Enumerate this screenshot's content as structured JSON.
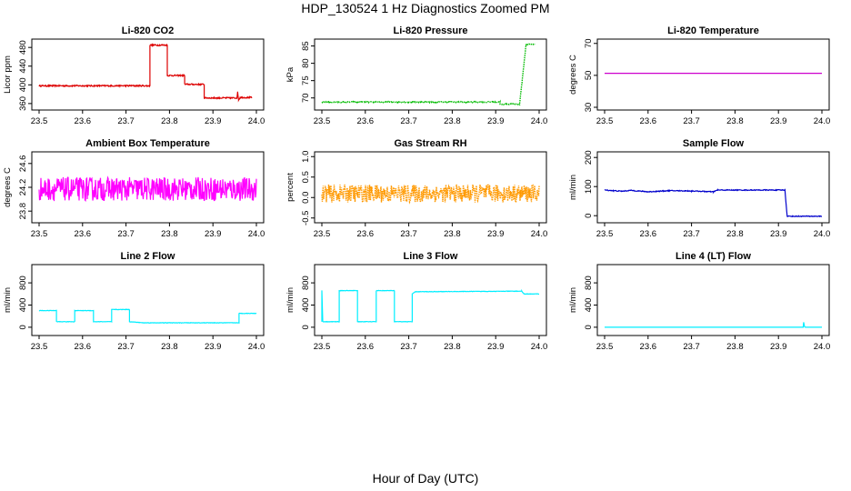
{
  "title": "HDP_130524  1 Hz Diagnostics Zoomed PM",
  "xlabel": "Hour of Day (UTC)",
  "chart_data": [
    {
      "type": "line",
      "title": "Li-820 CO2",
      "ylabel": "Licor ppm",
      "color": "#dd0000",
      "xlim": [
        23.5,
        24.0
      ],
      "xticks": [
        "23.5",
        "23.6",
        "23.7",
        "23.8",
        "23.9",
        "24.0"
      ],
      "ylim": [
        352,
        492
      ],
      "yticks": [
        "360",
        "400",
        "440",
        "480"
      ],
      "noise": 1.5,
      "series": [
        {
          "steps": [
            [
              23.5,
              398
            ],
            [
              23.755,
              398
            ],
            [
              23.755,
              485
            ],
            [
              23.795,
              485
            ],
            [
              23.795,
              420
            ],
            [
              23.835,
              420
            ],
            [
              23.835,
              401
            ],
            [
              23.88,
              401
            ],
            [
              23.88,
              372
            ],
            [
              23.955,
              372
            ],
            [
              23.957,
              384
            ],
            [
              23.959,
              368
            ],
            [
              23.963,
              373
            ],
            [
              23.99,
              373
            ]
          ]
        }
      ]
    },
    {
      "type": "line",
      "title": "Li-820 Pressure",
      "ylabel": "kPa",
      "color": "#00bb00",
      "style": "dotted",
      "xlim": [
        23.5,
        24.0
      ],
      "xticks": [
        "23.5",
        "23.6",
        "23.7",
        "23.8",
        "23.9",
        "24.0"
      ],
      "ylim": [
        67.3,
        86.2
      ],
      "yticks": [
        "70",
        "75",
        "80",
        "85"
      ],
      "noise": 0.15,
      "series": [
        {
          "steps": [
            [
              23.5,
              68.8
            ],
            [
              23.91,
              68.8
            ],
            [
              23.91,
              68.2
            ],
            [
              23.955,
              68.2
            ],
            [
              23.97,
              85.5
            ],
            [
              23.99,
              85.5
            ]
          ]
        }
      ]
    },
    {
      "type": "line",
      "title": "Li-820 Temperature",
      "ylabel": "degrees C",
      "color": "#cc00cc",
      "xlim": [
        23.5,
        24.0
      ],
      "xticks": [
        "23.5",
        "23.6",
        "23.7",
        "23.8",
        "23.9",
        "24.0"
      ],
      "ylim": [
        30,
        71
      ],
      "yticks": [
        "30",
        "50",
        "70"
      ],
      "noise": 0,
      "series": [
        {
          "steps": [
            [
              23.5,
              51.3
            ],
            [
              24.0,
              51.3
            ]
          ]
        }
      ]
    },
    {
      "type": "line",
      "title": "Ambient Box Temperature",
      "ylabel": "degrees C",
      "color": "#ff00ff",
      "xlim": [
        23.5,
        24.0
      ],
      "xticks": [
        "23.5",
        "23.6",
        "23.7",
        "23.8",
        "23.9",
        "24.0"
      ],
      "ylim": [
        23.65,
        24.75
      ],
      "yticks": [
        "23.8",
        "24.2",
        "24.6"
      ],
      "noise": 0.2,
      "series": [
        {
          "steps": [
            [
              23.5,
              24.17
            ],
            [
              24.0,
              24.17
            ]
          ]
        }
      ]
    },
    {
      "type": "line",
      "title": "Gas Stream RH",
      "ylabel": "percent",
      "color": "#ff9900",
      "style": "dotted",
      "xlim": [
        23.5,
        24.0
      ],
      "xticks": [
        "23.5",
        "23.6",
        "23.7",
        "23.8",
        "23.9",
        "24.0"
      ],
      "ylim": [
        -0.55,
        1.05
      ],
      "yticks": [
        "-0.5",
        "0.0",
        "0.5",
        "1.0"
      ],
      "noise": 0.22,
      "series": [
        {
          "steps": [
            [
              23.5,
              0.1
            ],
            [
              24.0,
              0.1
            ]
          ]
        }
      ]
    },
    {
      "type": "line",
      "title": "Sample Flow",
      "ylabel": "ml/min",
      "color": "#0000cc",
      "xlim": [
        23.5,
        24.0
      ],
      "xticks": [
        "23.5",
        "23.6",
        "23.7",
        "23.8",
        "23.9",
        "24.0"
      ],
      "ylim": [
        -15,
        210
      ],
      "yticks": [
        "0",
        "100",
        "200"
      ],
      "noise": 1.5,
      "series": [
        {
          "steps": [
            [
              23.5,
              88
            ],
            [
              23.52,
              86
            ],
            [
              23.54,
              84
            ],
            [
              23.56,
              87
            ],
            [
              23.6,
              82
            ],
            [
              23.65,
              86
            ],
            [
              23.7,
              85
            ],
            [
              23.75,
              82
            ],
            [
              23.76,
              88
            ],
            [
              23.915,
              88
            ],
            [
              23.92,
              -2
            ],
            [
              24.0,
              -2
            ]
          ]
        }
      ]
    },
    {
      "type": "line",
      "title": "Line 2 Flow",
      "ylabel": "ml/min",
      "color": "#00eeff",
      "xlim": [
        23.5,
        24.0
      ],
      "xticks": [
        "23.5",
        "23.6",
        "23.7",
        "23.8",
        "23.9",
        "24.0"
      ],
      "ylim": [
        -100,
        1080
      ],
      "yticks": [
        "0",
        "400",
        "800"
      ],
      "noise": 4,
      "series": [
        {
          "steps": [
            [
              23.5,
              300
            ],
            [
              23.54,
              300
            ],
            [
              23.54,
              100
            ],
            [
              23.582,
              100
            ],
            [
              23.582,
              300
            ],
            [
              23.625,
              300
            ],
            [
              23.625,
              100
            ],
            [
              23.667,
              100
            ],
            [
              23.667,
              320
            ],
            [
              23.708,
              320
            ],
            [
              23.708,
              100
            ],
            [
              23.74,
              80
            ],
            [
              23.96,
              80
            ],
            [
              23.96,
              250
            ],
            [
              24.0,
              250
            ]
          ]
        }
      ]
    },
    {
      "type": "line",
      "title": "Line 3 Flow",
      "ylabel": "ml/min",
      "color": "#00eeff",
      "xlim": [
        23.5,
        24.0
      ],
      "xticks": [
        "23.5",
        "23.6",
        "23.7",
        "23.8",
        "23.9",
        "24.0"
      ],
      "ylim": [
        -100,
        1080
      ],
      "yticks": [
        "0",
        "400",
        "800"
      ],
      "noise": 4,
      "series": [
        {
          "steps": [
            [
              23.5,
              100
            ],
            [
              23.5,
              660
            ],
            [
              23.502,
              100
            ],
            [
              23.54,
              100
            ],
            [
              23.54,
              660
            ],
            [
              23.582,
              660
            ],
            [
              23.582,
              100
            ],
            [
              23.625,
              100
            ],
            [
              23.625,
              660
            ],
            [
              23.667,
              660
            ],
            [
              23.667,
              100
            ],
            [
              23.708,
              100
            ],
            [
              23.708,
              600
            ],
            [
              23.715,
              640
            ],
            [
              23.96,
              650
            ],
            [
              23.965,
              600
            ],
            [
              24.0,
              600
            ]
          ]
        }
      ]
    },
    {
      "type": "line",
      "title": "Line 4 (LT) Flow",
      "ylabel": "ml/min",
      "color": "#00eeff",
      "xlim": [
        23.5,
        24.0
      ],
      "xticks": [
        "23.5",
        "23.6",
        "23.7",
        "23.8",
        "23.9",
        "24.0"
      ],
      "ylim": [
        -100,
        1080
      ],
      "yticks": [
        "0",
        "400",
        "800"
      ],
      "noise": 0,
      "series": [
        {
          "steps": [
            [
              23.5,
              0
            ],
            [
              23.957,
              0
            ],
            [
              23.958,
              90
            ],
            [
              23.96,
              10
            ],
            [
              23.962,
              0
            ],
            [
              24.0,
              0
            ]
          ]
        }
      ]
    }
  ]
}
